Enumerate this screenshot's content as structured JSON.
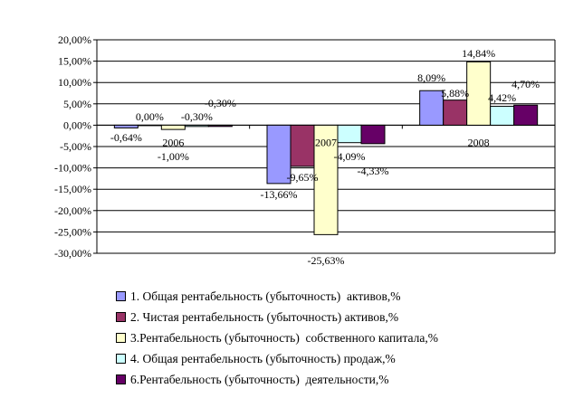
{
  "chart_data": {
    "type": "bar",
    "title": "",
    "xlabel": "",
    "ylabel": "",
    "categories": [
      "2006",
      "2007",
      "2008"
    ],
    "ylim": [
      -30,
      20
    ],
    "ytick_step": 5,
    "ytick_labels": [
      "20,00%",
      "15,00%",
      "10,00%",
      "5,00%",
      "0,00%",
      "-5,00%",
      "-10,00%",
      "-15,00%",
      "-20,00%",
      "-25,00%",
      "-30,00%"
    ],
    "grid": true,
    "legend_position": "bottom",
    "series": [
      {
        "name": "1. Общая рентабельность (убыточность)  активов,%",
        "color": "#9999FF",
        "values": [
          -0.64,
          -13.66,
          8.09
        ],
        "labels": [
          "-0,64%",
          "-13,66%",
          "8,09%"
        ]
      },
      {
        "name": "2. Чистая рентабельность (убыточность) активов,%",
        "color": "#993366",
        "values": [
          0.0,
          -9.65,
          5.88
        ],
        "labels": [
          "0,00%",
          "-9,65%",
          "5,88%"
        ]
      },
      {
        "name": "3.Рентабельность (убыточность)  собственного капитала,%",
        "color": "#FFFFCC",
        "values": [
          -1.0,
          -25.63,
          14.84
        ],
        "labels": [
          "-1,00%",
          "-25,63%",
          "14,84%"
        ]
      },
      {
        "name": "4. Общая рентабельность (убыточность) продаж,%",
        "color": "#CCFFFF",
        "values": [
          -0.3,
          -4.09,
          4.42
        ],
        "labels": [
          "-0,30%",
          "-4,09%",
          "4,42%"
        ]
      },
      {
        "name": "6.Рентабельность (убыточность)  деятельности,%",
        "color": "#660066",
        "values": [
          -0.3,
          -4.33,
          4.7
        ],
        "labels": [
          "-0,30%",
          "-4,33%",
          "4,70%"
        ]
      }
    ]
  }
}
